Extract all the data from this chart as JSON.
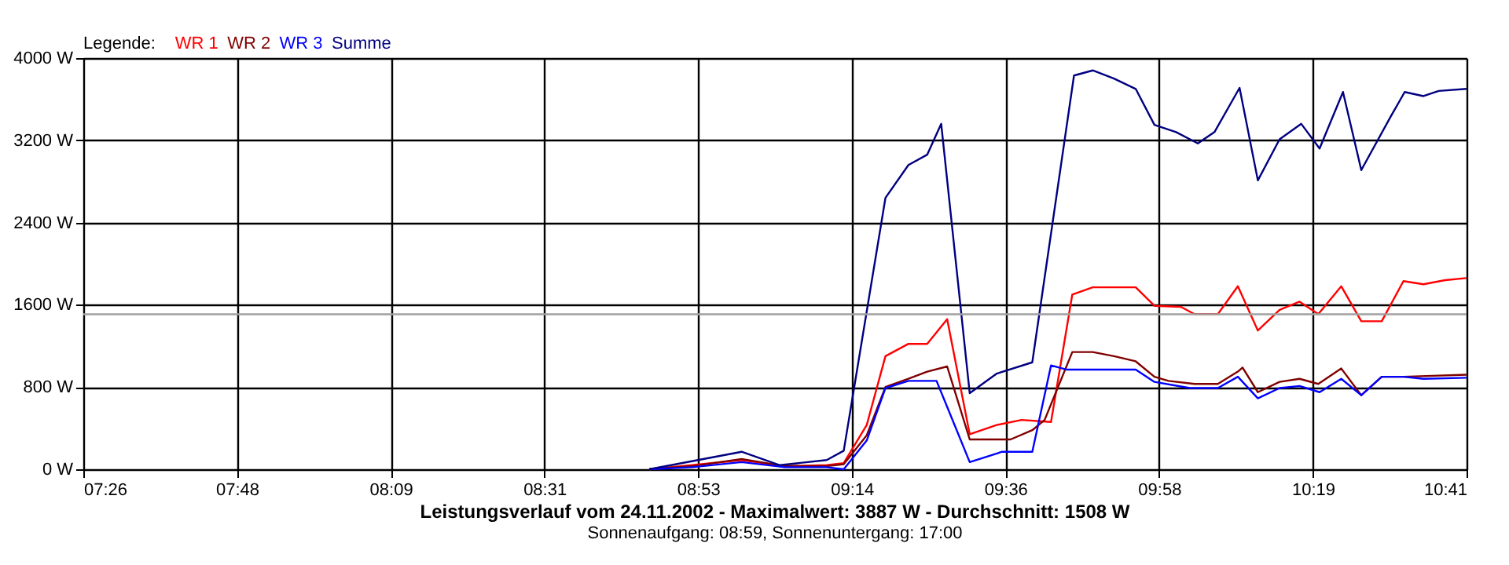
{
  "chart_data": {
    "type": "line",
    "title": "Leistungsverlauf vom 24.11.2002 - Maximalwert: 3887 W - Durchschnitt: 1508 W",
    "subtitle": "Sonnenaufgang: 08:59, Sonnenuntergang: 17:00",
    "legend_title": "Legende:",
    "xlim": [
      7.43333,
      10.68333
    ],
    "xticks": [
      {
        "value": 7.43333,
        "label": "07:26"
      },
      {
        "value": 7.79444,
        "label": "07:48"
      },
      {
        "value": 8.15556,
        "label": "08:09"
      },
      {
        "value": 8.51667,
        "label": "08:31"
      },
      {
        "value": 8.87778,
        "label": "08:53"
      },
      {
        "value": 9.23889,
        "label": "09:14"
      },
      {
        "value": 9.6,
        "label": "09:36"
      },
      {
        "value": 9.96111,
        "label": "09:58"
      },
      {
        "value": 10.32222,
        "label": "10:19"
      },
      {
        "value": 10.68333,
        "label": "10:41"
      }
    ],
    "ylim": [
      0,
      4000
    ],
    "yticks": [
      {
        "value": 0,
        "label": "0 W"
      },
      {
        "value": 800,
        "label": "800 W"
      },
      {
        "value": 1600,
        "label": "1600 W"
      },
      {
        "value": 2400,
        "label": "2400 W"
      },
      {
        "value": 3200,
        "label": "3200 W"
      },
      {
        "value": 4000,
        "label": "4000 W"
      }
    ],
    "grid": true,
    "legend": "top left",
    "marker": "none",
    "line_style": "solid",
    "ref_lines": [
      {
        "axis": "y",
        "value": 1508,
        "label": null,
        "color": "#a0a0a0"
      }
    ],
    "series": [
      {
        "name": "WR 1",
        "color": "#ff0000",
        "x": [
          8.763,
          8.864,
          8.98,
          9.082,
          9.18,
          9.22,
          9.274,
          9.318,
          9.372,
          9.416,
          9.463,
          9.516,
          9.579,
          9.638,
          9.707,
          9.757,
          9.805,
          9.906,
          9.95,
          10.012,
          10.044,
          10.099,
          10.146,
          10.193,
          10.244,
          10.291,
          10.335,
          10.389,
          10.436,
          10.484,
          10.535,
          10.582,
          10.633,
          10.683
        ],
        "values": [
          0,
          40,
          90,
          30,
          40,
          60,
          430,
          1100,
          1220,
          1220,
          1460,
          340,
          430,
          480,
          460,
          1700,
          1770,
          1770,
          1590,
          1580,
          1510,
          1510,
          1780,
          1350,
          1550,
          1630,
          1510,
          1780,
          1440,
          1440,
          1830,
          1800,
          1840,
          1860
        ]
      },
      {
        "name": "WR 2",
        "color": "#800000",
        "x": [
          8.763,
          8.864,
          8.98,
          9.082,
          9.18,
          9.22,
          9.274,
          9.318,
          9.372,
          9.416,
          9.463,
          9.516,
          9.612,
          9.663,
          9.692,
          9.757,
          9.805,
          9.855,
          9.906,
          9.95,
          9.983,
          10.044,
          10.099,
          10.146,
          10.157,
          10.193,
          10.244,
          10.291,
          10.335,
          10.389,
          10.436,
          10.484,
          10.535,
          10.683
        ],
        "values": [
          0,
          30,
          100,
          30,
          30,
          50,
          330,
          800,
          880,
          950,
          1000,
          290,
          290,
          380,
          480,
          1140,
          1140,
          1100,
          1050,
          900,
          860,
          830,
          830,
          950,
          990,
          750,
          850,
          880,
          830,
          980,
          720,
          900,
          900,
          920
        ]
      },
      {
        "name": "WR 3",
        "color": "#0000ff",
        "x": [
          8.763,
          8.864,
          8.98,
          9.082,
          9.18,
          9.22,
          9.274,
          9.318,
          9.372,
          9.438,
          9.516,
          9.592,
          9.663,
          9.707,
          9.743,
          9.906,
          9.95,
          10.033,
          10.099,
          10.146,
          10.193,
          10.244,
          10.291,
          10.338,
          10.389,
          10.436,
          10.484,
          10.535,
          10.582,
          10.683
        ],
        "values": [
          0,
          20,
          70,
          20,
          20,
          0,
          280,
          790,
          860,
          860,
          70,
          170,
          170,
          1010,
          970,
          970,
          850,
          790,
          790,
          900,
          690,
          790,
          810,
          750,
          880,
          720,
          900,
          900,
          880,
          890
        ]
      },
      {
        "name": "Summe",
        "color": "#000080",
        "x": [
          8.763,
          8.98,
          9.07,
          9.18,
          9.22,
          9.318,
          9.372,
          9.416,
          9.449,
          9.516,
          9.579,
          9.663,
          9.761,
          9.805,
          9.855,
          9.906,
          9.95,
          10.001,
          10.052,
          10.091,
          10.15,
          10.193,
          10.244,
          10.295,
          10.338,
          10.393,
          10.436,
          10.505,
          10.538,
          10.582,
          10.618,
          10.683
        ],
        "values": [
          0,
          170,
          40,
          90,
          180,
          2640,
          2960,
          3060,
          3360,
          740,
          930,
          1040,
          3830,
          3880,
          3800,
          3700,
          3350,
          3280,
          3170,
          3280,
          3710,
          2810,
          3210,
          3360,
          3120,
          3670,
          2910,
          3430,
          3670,
          3630,
          3680,
          3700
        ]
      }
    ]
  }
}
